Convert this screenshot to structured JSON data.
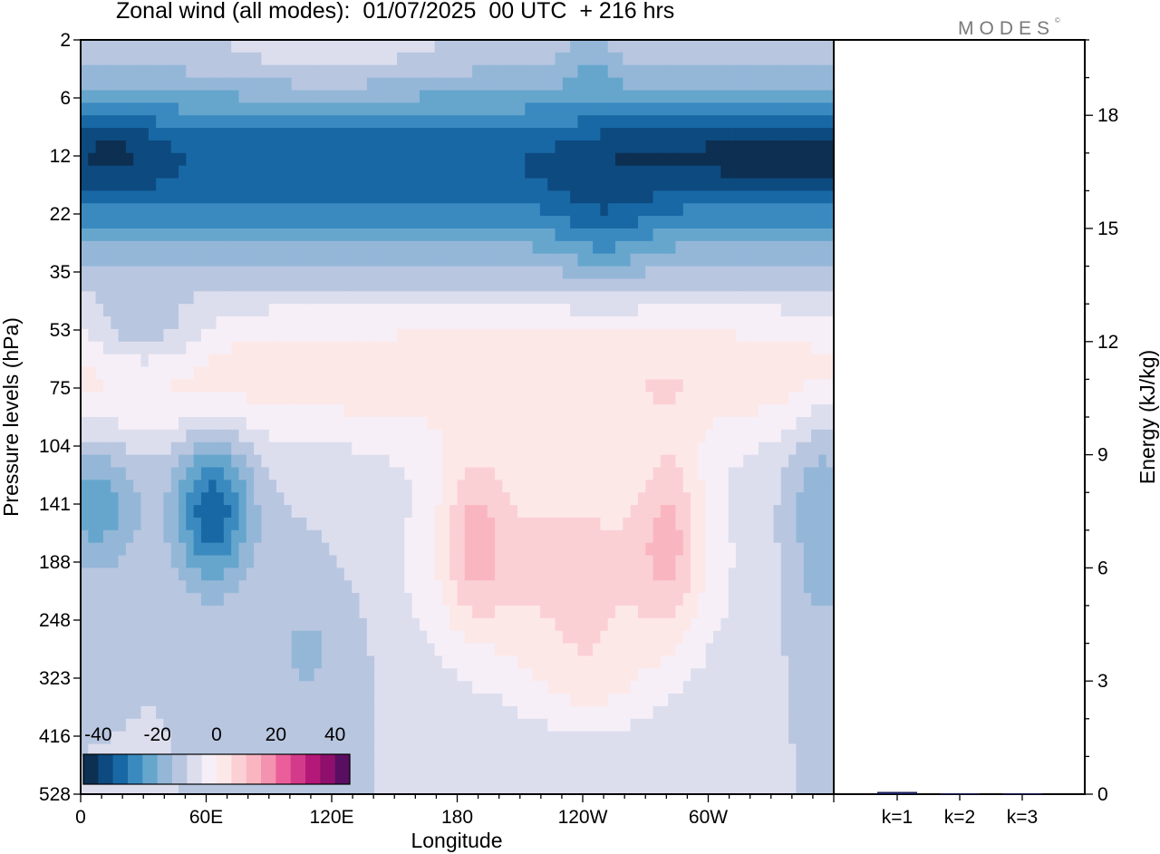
{
  "title": "Zonal wind (all modes):  01/07/2025  00 UTC  + 216 hrs",
  "logo": "MODES",
  "logo_mark": "©",
  "chart_data": [
    {
      "type": "heatmap",
      "title": "Zonal wind (all modes):  01/07/2025  00 UTC  + 216 hrs",
      "xlabel": "Longitude",
      "ylabel": "Pressure levels (hPa)",
      "x_ticks": [
        "0",
        "60E",
        "120E",
        "180",
        "120W",
        "60W"
      ],
      "x_range": [
        0,
        360
      ],
      "x_tick_positions_deg": [
        0,
        60,
        120,
        180,
        240,
        300
      ],
      "y_ticks": [
        "2",
        "6",
        "12",
        "22",
        "35",
        "53",
        "75",
        "104",
        "141",
        "188",
        "248",
        "323",
        "416",
        "528"
      ],
      "colorbar": {
        "labels": [
          "-40",
          "-20",
          "0",
          "20",
          "40"
        ],
        "range": [
          -45,
          45
        ],
        "step": 5,
        "colors": [
          "#0c2f52",
          "#0d4a7f",
          "#1868a6",
          "#3a8ac0",
          "#66a6cd",
          "#94b7d8",
          "#b8c6e0",
          "#dcdeee",
          "#f6eff7",
          "#fde8e8",
          "#fbd0d5",
          "#f9b6c1",
          "#f493b0",
          "#ea5f9a",
          "#d43a8a",
          "#b41878",
          "#8e0f6c",
          "#5a0e62"
        ]
      },
      "field_summary": [
        {
          "region": "stratospheric jet 10-25 hPa",
          "lon_range": [
            0,
            360
          ],
          "value": -32
        },
        {
          "region": "upper band 25-40 hPa",
          "lon_range": [
            0,
            360
          ],
          "value": -20
        },
        {
          "region": "easterly core ~140 hPa",
          "lon_range": [
            45,
            90
          ],
          "value": -25
        },
        {
          "region": "westerly region 90-330 hPa",
          "lon_range": [
            150,
            320
          ],
          "value": 10
        },
        {
          "region": "westerly core ~141 hPa",
          "lon_range": [
            270,
            290
          ],
          "value": 15
        }
      ]
    },
    {
      "type": "bar",
      "categories": [
        "k=1",
        "k=2",
        "k=3"
      ],
      "values": [
        0.06,
        0.02,
        0.02
      ],
      "ylabel": "Energy (kJ/kg)",
      "ylim": [
        0,
        20
      ],
      "y_ticks": [
        "0",
        "3",
        "6",
        "9",
        "12",
        "15",
        "18"
      ],
      "bar_color": "#1a1f5a"
    }
  ]
}
